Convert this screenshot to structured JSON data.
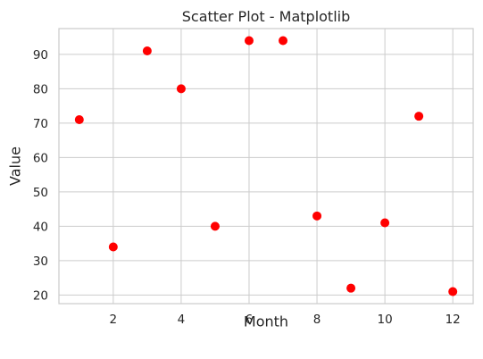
{
  "chart_data": {
    "type": "scatter",
    "title": "Scatter Plot - Matplotlib",
    "xlabel": "Month",
    "ylabel": "Value",
    "xlim": [
      0.4,
      12.6
    ],
    "ylim": [
      17.5,
      97.5
    ],
    "xticks": [
      2,
      4,
      6,
      8,
      10,
      12
    ],
    "yticks": [
      20,
      30,
      40,
      50,
      60,
      70,
      80,
      90
    ],
    "grid": true,
    "marker_color": "#ff0000",
    "points": [
      {
        "x": 1,
        "y": 71
      },
      {
        "x": 2,
        "y": 34
      },
      {
        "x": 3,
        "y": 91
      },
      {
        "x": 4,
        "y": 80
      },
      {
        "x": 5,
        "y": 40
      },
      {
        "x": 6,
        "y": 94
      },
      {
        "x": 7,
        "y": 94
      },
      {
        "x": 8,
        "y": 43
      },
      {
        "x": 9,
        "y": 22
      },
      {
        "x": 10,
        "y": 41
      },
      {
        "x": 11,
        "y": 72
      },
      {
        "x": 12,
        "y": 21
      }
    ]
  }
}
